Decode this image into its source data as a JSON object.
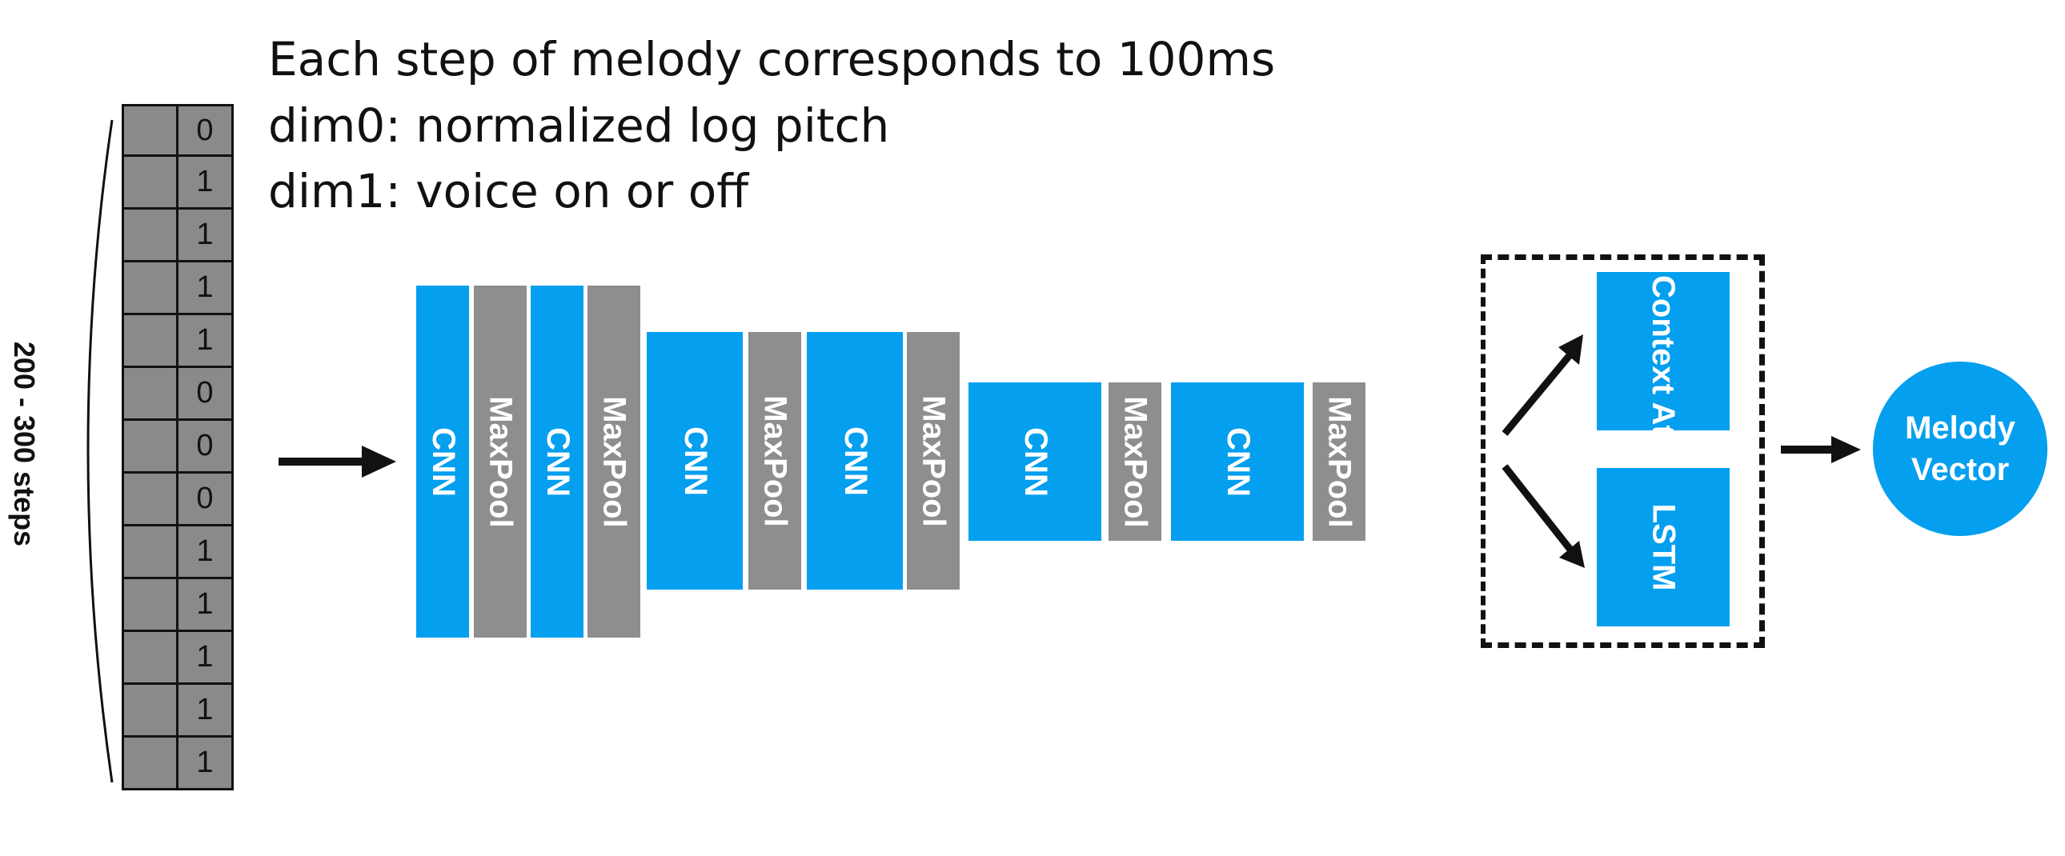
{
  "captions": {
    "line1": "Each step of melody corresponds to 100ms",
    "line2": "dim0: normalized log pitch",
    "line3": "dim1: voice on or off"
  },
  "sequence": {
    "voice_values": [
      "0",
      "1",
      "1",
      "1",
      "1",
      "0",
      "0",
      "0",
      "1",
      "1",
      "1",
      "1",
      "1"
    ],
    "length_label": "200 - 300 steps"
  },
  "encoder_layers": [
    {
      "kind": "cnn",
      "label": "CNN"
    },
    {
      "kind": "pool",
      "label": "MaxPool"
    },
    {
      "kind": "cnn",
      "label": "CNN"
    },
    {
      "kind": "pool",
      "label": "MaxPool"
    },
    {
      "kind": "cnn",
      "label": "CNN"
    },
    {
      "kind": "pool",
      "label": "MaxPool"
    },
    {
      "kind": "cnn",
      "label": "CNN"
    },
    {
      "kind": "pool",
      "label": "MaxPool"
    },
    {
      "kind": "cnn",
      "label": "CNN"
    },
    {
      "kind": "pool",
      "label": "MaxPool"
    },
    {
      "kind": "cnn",
      "label": "CNN"
    },
    {
      "kind": "pool",
      "label": "MaxPool"
    }
  ],
  "heads": {
    "attention": "Context Attention",
    "lstm": "LSTM"
  },
  "output": {
    "line1": "Melody",
    "line2": "Vector"
  },
  "colors": {
    "cnn": "#049fef",
    "pool": "#8e8e8e",
    "cell": "#8a8a8a"
  }
}
